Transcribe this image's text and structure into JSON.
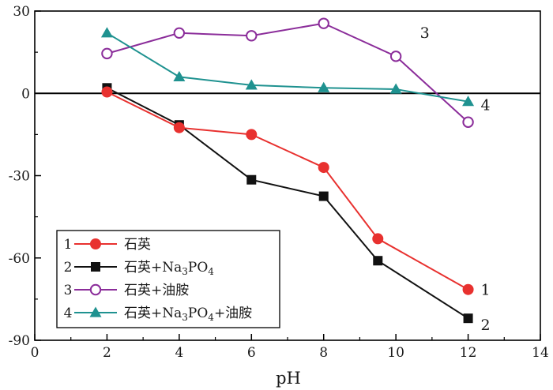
{
  "chart_data": {
    "type": "line",
    "title": "",
    "xlabel": "pH",
    "ylabel": "",
    "xlim": [
      0,
      14
    ],
    "ylim": [
      -90,
      30
    ],
    "xticks": [
      0,
      2,
      4,
      6,
      8,
      10,
      12,
      14
    ],
    "yticks": [
      30,
      0,
      -30,
      -60,
      -90
    ],
    "zero_line": true,
    "legend_position": "bottom-left",
    "series": [
      {
        "id": "1",
        "name": "石英",
        "marker": "filled-circle",
        "color": "#e8312f",
        "end_label": "1",
        "x": [
          2,
          4,
          6,
          8,
          9.5,
          12
        ],
        "y": [
          0.5,
          -12.5,
          -15,
          -27,
          -53,
          -71.5
        ]
      },
      {
        "id": "2",
        "name_parts": [
          "石英+Na",
          "3",
          "PO",
          "4"
        ],
        "marker": "filled-square",
        "color": "#111111",
        "end_label": "2",
        "x": [
          2,
          4,
          6,
          8,
          9.5,
          12
        ],
        "y": [
          2,
          -11.5,
          -31.5,
          -37.5,
          -61,
          -82
        ]
      },
      {
        "id": "3",
        "name": "石英+油胺",
        "marker": "open-circle",
        "color": "#8b2d9a",
        "end_label": "3",
        "x": [
          2,
          4,
          6,
          8,
          10,
          12
        ],
        "y": [
          14.5,
          22,
          21,
          25.5,
          13.5,
          -10.5
        ]
      },
      {
        "id": "4",
        "name_parts": [
          "石英+Na",
          "3",
          "PO",
          "4",
          "+油胺"
        ],
        "marker": "filled-triangle",
        "color": "#1f9290",
        "end_label": "4",
        "x": [
          2,
          4,
          6,
          8,
          10,
          12
        ],
        "y": [
          22,
          6,
          3,
          2,
          1.5,
          -3
        ]
      }
    ]
  }
}
